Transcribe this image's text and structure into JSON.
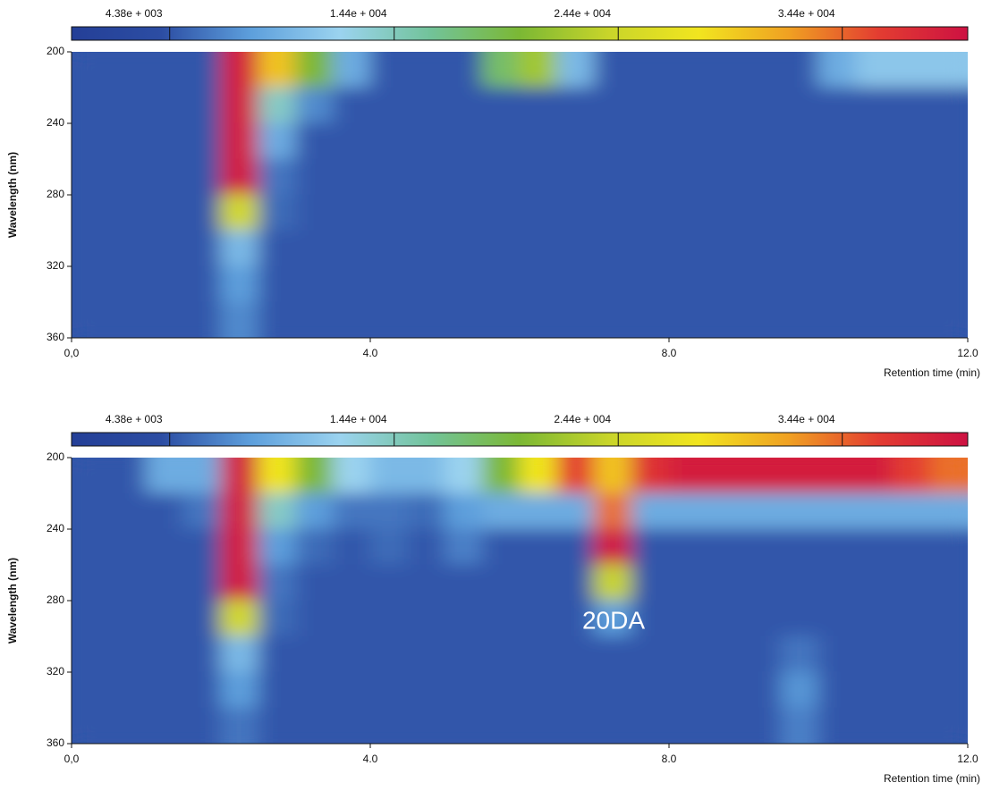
{
  "chart_data": [
    {
      "type": "heatmap",
      "y_label": "Wavelength (nm)",
      "x_label": "Retention time (min)",
      "xlim": [
        0,
        12
      ],
      "xticks": [
        {
          "value": 0,
          "label": "0,0"
        },
        {
          "value": 4,
          "label": "4.0"
        },
        {
          "value": 8,
          "label": "8.0"
        },
        {
          "value": 12,
          "label": "12.0"
        }
      ],
      "ylim": [
        200,
        360
      ],
      "yticks": [
        200,
        240,
        280,
        320,
        360
      ],
      "zlim": [
        0,
        40000
      ],
      "zticks": [
        {
          "value": 4380,
          "label": "4.38e + 003"
        },
        {
          "value": 14400,
          "label": "1.44e + 004"
        },
        {
          "value": 24400,
          "label": "2.44e + 004"
        },
        {
          "value": 34400,
          "label": "3.44e + 004"
        }
      ],
      "colors": [
        "#243f97",
        "#2c4da3",
        "#5d9fdc",
        "#9bd3ef",
        "#72c39a",
        "#7bb834",
        "#c9d52a",
        "#f1e51f",
        "#f0a122",
        "#e33d31",
        "#cd1142"
      ],
      "x": [
        0.25,
        0.75,
        1.25,
        1.75,
        2.25,
        2.75,
        3.25,
        3.75,
        4.25,
        4.75,
        5.25,
        5.75,
        6.25,
        6.75,
        7.25,
        7.75,
        8.25,
        8.75,
        9.25,
        9.75,
        10.25,
        10.75,
        11.25,
        11.75
      ],
      "y": [
        210,
        230,
        250,
        270,
        290,
        310,
        330,
        350
      ],
      "z": [
        [
          4500,
          4500,
          4500,
          4500,
          39000,
          30000,
          20000,
          9000,
          4500,
          4500,
          4500,
          18000,
          22000,
          10000,
          4500,
          4500,
          4500,
          4500,
          4500,
          4500,
          9000,
          11000,
          11000,
          11000
        ],
        [
          4500,
          4500,
          4500,
          4500,
          39000,
          14000,
          7000,
          4500,
          4500,
          4500,
          4500,
          4500,
          4500,
          4500,
          4500,
          4500,
          4500,
          4500,
          4500,
          4500,
          4500,
          4500,
          4500,
          4500
        ],
        [
          4500,
          4500,
          4500,
          4500,
          39000,
          9000,
          4500,
          4500,
          4500,
          4500,
          4500,
          4500,
          4500,
          4500,
          4500,
          4500,
          4500,
          4500,
          4500,
          4500,
          4500,
          4500,
          4500,
          4500
        ],
        [
          4500,
          4500,
          4500,
          4500,
          39000,
          6000,
          4500,
          4500,
          4500,
          4500,
          4500,
          4500,
          4500,
          4500,
          4500,
          4500,
          4500,
          4500,
          4500,
          4500,
          4500,
          4500,
          4500,
          4500
        ],
        [
          4500,
          4500,
          4500,
          4500,
          25000,
          5500,
          4500,
          4500,
          4500,
          4500,
          4500,
          4500,
          4500,
          4500,
          4500,
          4500,
          4500,
          4500,
          4500,
          4500,
          4500,
          4500,
          4500,
          4500
        ],
        [
          4500,
          4500,
          4500,
          4500,
          10000,
          4500,
          4500,
          4500,
          4500,
          4500,
          4500,
          4500,
          4500,
          4500,
          4500,
          4500,
          4500,
          4500,
          4500,
          4500,
          4500,
          4500,
          4500,
          4500
        ],
        [
          4500,
          4500,
          4500,
          4500,
          8000,
          4500,
          4500,
          4500,
          4500,
          4500,
          4500,
          4500,
          4500,
          4500,
          4500,
          4500,
          4500,
          4500,
          4500,
          4500,
          4500,
          4500,
          4500,
          4500
        ],
        [
          4500,
          4500,
          4500,
          4500,
          7000,
          4500,
          4500,
          4500,
          4500,
          4500,
          4500,
          4500,
          4500,
          4500,
          4500,
          4500,
          4500,
          4500,
          4500,
          4500,
          4500,
          4500,
          4500,
          4500
        ]
      ]
    },
    {
      "type": "heatmap",
      "y_label": "Wavelength (nm)",
      "x_label": "Retention time (min)",
      "annotation": "20DA",
      "xlim": [
        0,
        12
      ],
      "xticks": [
        {
          "value": 0,
          "label": "0,0"
        },
        {
          "value": 4,
          "label": "4.0"
        },
        {
          "value": 8,
          "label": "8.0"
        },
        {
          "value": 12,
          "label": "12.0"
        }
      ],
      "ylim": [
        200,
        360
      ],
      "yticks": [
        200,
        240,
        280,
        320,
        360
      ],
      "zlim": [
        0,
        40000
      ],
      "zticks": [
        {
          "value": 4380,
          "label": "4.38e + 003"
        },
        {
          "value": 14400,
          "label": "1.44e + 004"
        },
        {
          "value": 24400,
          "label": "2.44e + 004"
        },
        {
          "value": 34400,
          "label": "3.44e + 004"
        }
      ],
      "colors": [
        "#243f97",
        "#2c4da3",
        "#5d9fdc",
        "#9bd3ef",
        "#72c39a",
        "#7bb834",
        "#c9d52a",
        "#f1e51f",
        "#f0a122",
        "#e33d31",
        "#cd1142"
      ],
      "x": [
        0.25,
        0.75,
        1.25,
        1.75,
        2.25,
        2.75,
        3.25,
        3.75,
        4.25,
        4.75,
        5.25,
        5.75,
        6.25,
        6.75,
        7.25,
        7.75,
        8.25,
        8.75,
        9.25,
        9.75,
        10.25,
        10.75,
        11.25,
        11.75
      ],
      "y": [
        210,
        230,
        250,
        270,
        290,
        310,
        330,
        350
      ],
      "z": [
        [
          4500,
          4500,
          9000,
          9000,
          39000,
          28000,
          20000,
          12000,
          10000,
          10000,
          12000,
          20000,
          28000,
          36000,
          30000,
          37000,
          39000,
          39000,
          39000,
          39000,
          39000,
          39000,
          36000,
          34000
        ],
        [
          4500,
          4500,
          4500,
          6000,
          39000,
          14000,
          8000,
          6000,
          6000,
          5500,
          8000,
          9000,
          9000,
          9000,
          34000,
          9000,
          9000,
          9000,
          9000,
          9000,
          9000,
          9000,
          9000,
          9000
        ],
        [
          4500,
          4500,
          4500,
          4500,
          39000,
          8000,
          5500,
          4500,
          5500,
          4500,
          6500,
          4500,
          4500,
          4500,
          39000,
          4500,
          4500,
          4500,
          4500,
          4500,
          4500,
          4500,
          4500,
          4500
        ],
        [
          4500,
          4500,
          4500,
          4500,
          39000,
          6000,
          4500,
          4500,
          4500,
          4500,
          4500,
          4500,
          4500,
          4500,
          24000,
          4500,
          4500,
          4500,
          4500,
          4500,
          4500,
          4500,
          4500,
          4500
        ],
        [
          4500,
          4500,
          4500,
          4500,
          25000,
          5500,
          4500,
          4500,
          4500,
          4500,
          4500,
          4500,
          4500,
          4500,
          8000,
          4500,
          4500,
          4500,
          4500,
          4500,
          4500,
          4500,
          4500,
          4500
        ],
        [
          4500,
          4500,
          4500,
          4500,
          10000,
          4500,
          4500,
          4500,
          4500,
          4500,
          4500,
          4500,
          4500,
          4500,
          4500,
          4500,
          4500,
          4500,
          4500,
          6000,
          4500,
          4500,
          4500,
          4500
        ],
        [
          4500,
          4500,
          4500,
          4500,
          8000,
          4500,
          4500,
          4500,
          4500,
          4500,
          4500,
          4500,
          4500,
          4500,
          4500,
          4500,
          4500,
          4500,
          4500,
          7500,
          4500,
          4500,
          4500,
          4500
        ],
        [
          4500,
          4500,
          4500,
          4500,
          6000,
          4500,
          4500,
          4500,
          4500,
          4500,
          4500,
          4500,
          4500,
          4500,
          4500,
          4500,
          4500,
          4500,
          4500,
          6500,
          4500,
          4500,
          4500,
          4500
        ]
      ]
    }
  ]
}
